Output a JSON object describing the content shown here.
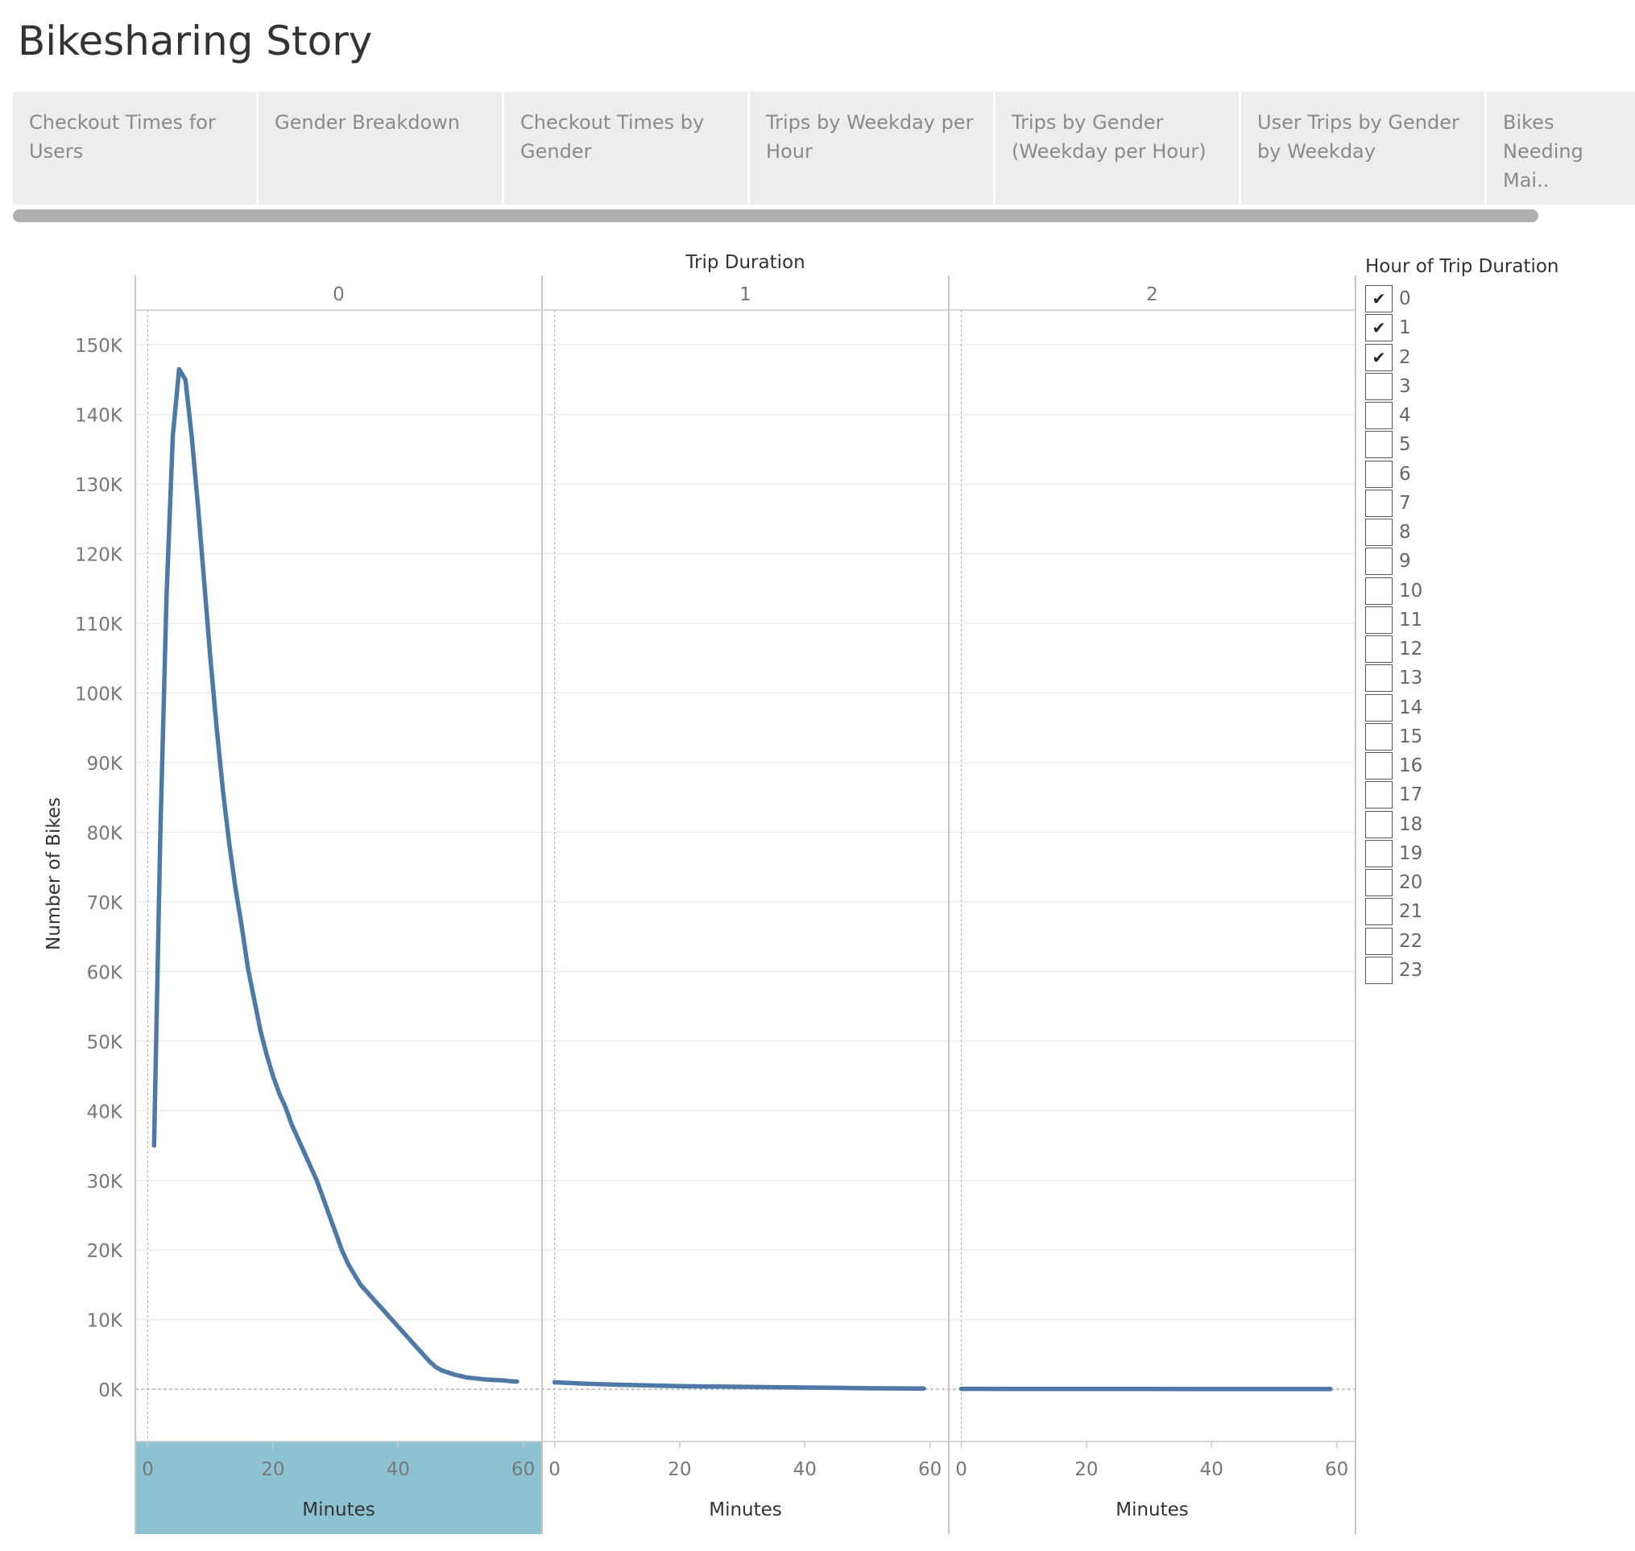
{
  "page_title": "Bikesharing Story",
  "tabs": [
    {
      "label": "Checkout Times for Users",
      "active": true
    },
    {
      "label": "Gender Breakdown",
      "active": false
    },
    {
      "label": "Checkout Times by Gender",
      "active": false
    },
    {
      "label": "Trips by Weekday per Hour",
      "active": false
    },
    {
      "label": "Trips by Gender (Weekday per Hour)",
      "active": false
    },
    {
      "label": "User Trips by Gender by Weekday",
      "active": false
    },
    {
      "label": "Bikes Needing Mai..",
      "active": false
    }
  ],
  "legend": {
    "title": "Hour of Trip Duration",
    "items": [
      {
        "label": "0",
        "checked": true
      },
      {
        "label": "1",
        "checked": true
      },
      {
        "label": "2",
        "checked": true
      },
      {
        "label": "3",
        "checked": false
      },
      {
        "label": "4",
        "checked": false
      },
      {
        "label": "5",
        "checked": false
      },
      {
        "label": "6",
        "checked": false
      },
      {
        "label": "7",
        "checked": false
      },
      {
        "label": "8",
        "checked": false
      },
      {
        "label": "9",
        "checked": false
      },
      {
        "label": "10",
        "checked": false
      },
      {
        "label": "11",
        "checked": false
      },
      {
        "label": "12",
        "checked": false
      },
      {
        "label": "13",
        "checked": false
      },
      {
        "label": "14",
        "checked": false
      },
      {
        "label": "15",
        "checked": false
      },
      {
        "label": "16",
        "checked": false
      },
      {
        "label": "17",
        "checked": false
      },
      {
        "label": "18",
        "checked": false
      },
      {
        "label": "19",
        "checked": false
      },
      {
        "label": "20",
        "checked": false
      },
      {
        "label": "21",
        "checked": false
      },
      {
        "label": "22",
        "checked": false
      },
      {
        "label": "23",
        "checked": false
      }
    ]
  },
  "colors": {
    "line": "#4e79a7",
    "highlight": "#8cc2d1",
    "grid": "#ebebeb",
    "border": "#c8c8c8",
    "tick_text": "#777777",
    "label_text": "#333333"
  },
  "chart_data": {
    "type": "line",
    "column_header_title": "Trip Duration",
    "ylabel": "Number of Bikes",
    "xlabel": "Minutes",
    "ylim": [
      -7500,
      155000
    ],
    "xlim": [
      -2,
      63
    ],
    "y_ticks": [
      0,
      10000,
      20000,
      30000,
      40000,
      50000,
      60000,
      70000,
      80000,
      90000,
      100000,
      110000,
      120000,
      130000,
      140000,
      150000
    ],
    "y_tick_labels": [
      "0K",
      "10K",
      "20K",
      "30K",
      "40K",
      "50K",
      "60K",
      "70K",
      "80K",
      "90K",
      "100K",
      "110K",
      "120K",
      "130K",
      "140K",
      "150K"
    ],
    "x_ticks": [
      0,
      20,
      40,
      60
    ],
    "x_tick_labels": [
      "0",
      "20",
      "40",
      "60"
    ],
    "grid": true,
    "legend_position": "right",
    "panels": [
      {
        "header": "0",
        "series": [
          {
            "x": [
              1,
              2,
              3,
              4,
              5,
              6,
              7,
              8,
              9,
              10,
              11,
              12,
              13,
              14,
              15,
              16,
              17,
              18,
              19,
              20,
              21,
              22,
              23,
              24,
              25,
              26,
              27,
              28,
              29,
              30,
              31,
              32,
              33,
              34,
              35,
              36,
              37,
              38,
              39,
              40,
              41,
              42,
              43,
              44,
              45,
              46,
              47,
              48,
              49,
              50,
              51,
              52,
              53,
              54,
              55,
              56,
              57,
              58,
              59
            ],
            "values": [
              35000,
              80000,
              114000,
              137000,
              146500,
              145000,
              137000,
              127000,
              116000,
              105000,
              95000,
              86000,
              78500,
              72000,
              66500,
              60500,
              56000,
              51500,
              48000,
              45000,
              42500,
              40500,
              38000,
              36000,
              34000,
              32000,
              30000,
              27500,
              25000,
              22500,
              20000,
              18000,
              16500,
              15000,
              14000,
              13000,
              12000,
              11000,
              10000,
              9000,
              8000,
              7000,
              6000,
              5000,
              4000,
              3200,
              2700,
              2400,
              2100,
              1900,
              1700,
              1600,
              1500,
              1400,
              1350,
              1300,
              1250,
              1150,
              1100
            ]
          }
        ]
      },
      {
        "header": "1",
        "series": [
          {
            "x": [
              0,
              5,
              10,
              15,
              20,
              25,
              30,
              35,
              40,
              45,
              50,
              55,
              59
            ],
            "values": [
              1000,
              800,
              650,
              550,
              450,
              400,
              350,
              300,
              250,
              200,
              150,
              120,
              100
            ]
          }
        ]
      },
      {
        "header": "2",
        "series": [
          {
            "x": [
              0,
              10,
              20,
              30,
              40,
              50,
              59
            ],
            "values": [
              60,
              50,
              45,
              40,
              35,
              30,
              25
            ]
          }
        ]
      }
    ]
  }
}
